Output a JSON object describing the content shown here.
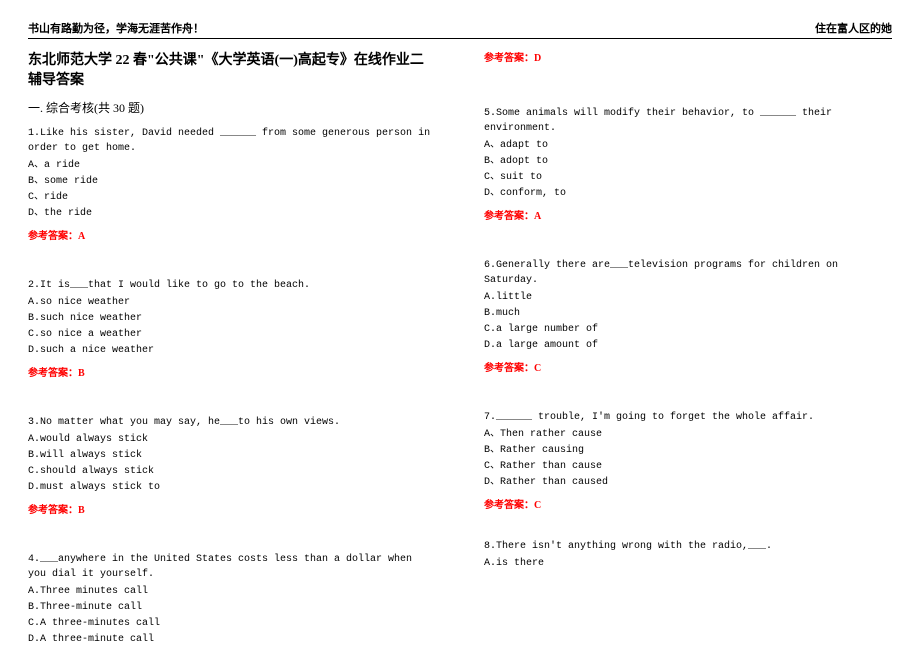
{
  "header": {
    "left": "书山有路勤为径，学海无涯苦作舟！",
    "right": "住在富人区的她"
  },
  "title": "东北师范大学 22 春\"公共课\"《大学英语(一)高起专》在线作业二辅导答案",
  "section": "一. 综合考核(共 30 题)",
  "answer_label": "参考答案：",
  "q1": {
    "text": "1.Like his sister, David needed ______ from some generous person in order to get home.",
    "a": "A、a ride",
    "b": "B、some ride",
    "c": "C、ride",
    "d": "D、the ride",
    "ans": "A"
  },
  "q2": {
    "text": "2.It is___that I would like to go to the beach.",
    "a": "A.so nice weather",
    "b": "B.such nice weather",
    "c": "C.so nice a weather",
    "d": "D.such a nice weather",
    "ans": "B"
  },
  "q3": {
    "text": "3.No matter what you may say, he___to his own views.",
    "a": "A.would always stick",
    "b": "B.will always stick",
    "c": "C.should always stick",
    "d": "D.must always stick to",
    "ans": "B"
  },
  "q4": {
    "text": "4.___anywhere in the United States costs less than a dollar when you dial it yourself.",
    "a": "A.Three minutes call",
    "b": "B.Three-minute call",
    "c": "C.A three-minutes call",
    "d": "D.A three-minute call",
    "ans": "D"
  },
  "q5": {
    "text": "5.Some animals will modify their behavior, to ______ their environment.",
    "a": "A、adapt to",
    "b": "B、adopt to",
    "c": "C、suit to",
    "d": "D、conform, to",
    "ans": "A"
  },
  "q6": {
    "text": "6.Generally there are___television programs for children on Saturday.",
    "a": "A.little",
    "b": "B.much",
    "c": "C.a large number of",
    "d": "D.a large amount of",
    "ans": "C"
  },
  "q7": {
    "text": "7.______ trouble, I'm going to forget the whole affair.",
    "a": "A、Then rather cause",
    "b": "B、Rather causing",
    "c": "C、Rather than cause",
    "d": "D、Rather than caused",
    "ans": "C"
  },
  "q8": {
    "text": "8.There isn't anything wrong with the radio,___.",
    "a": "A.is there"
  }
}
